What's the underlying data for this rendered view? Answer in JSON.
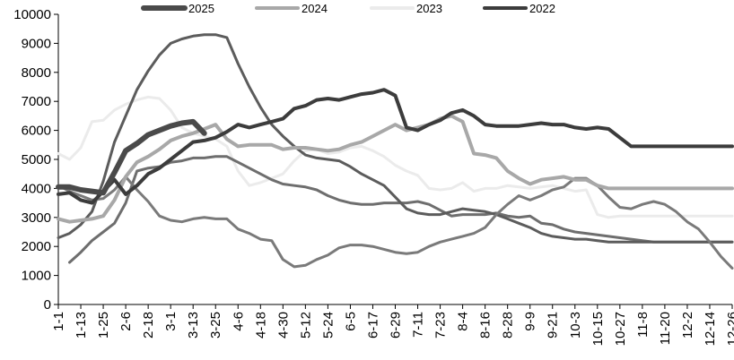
{
  "chart_data": {
    "type": "line",
    "title": "",
    "xlabel": "",
    "ylabel": "",
    "ylim": [
      0,
      10000
    ],
    "yticks": [
      0,
      1000,
      2000,
      3000,
      4000,
      5000,
      6000,
      7000,
      8000,
      9000,
      10000
    ],
    "legend_position": "top",
    "grid": false,
    "x": [
      "1-1",
      "1-7",
      "1-13",
      "1-19",
      "1-25",
      "1-31",
      "2-6",
      "2-12",
      "2-18",
      "2-24",
      "3-1",
      "3-7",
      "3-13",
      "3-19",
      "3-25",
      "3-31",
      "4-6",
      "4-12",
      "4-18",
      "4-24",
      "4-30",
      "5-6",
      "5-12",
      "5-18",
      "5-24",
      "5-30",
      "6-5",
      "6-11",
      "6-17",
      "6-23",
      "6-29",
      "7-5",
      "7-11",
      "7-17",
      "7-23",
      "7-29",
      "8-4",
      "8-10",
      "8-16",
      "8-22",
      "8-28",
      "9-3",
      "9-9",
      "9-15",
      "9-21",
      "9-27",
      "10-3",
      "10-9",
      "10-15",
      "10-21",
      "10-27",
      "11-2",
      "11-8",
      "11-14",
      "11-20",
      "11-26",
      "12-2",
      "12-8",
      "12-14",
      "12-20",
      "12-26"
    ],
    "x_tick_labels": [
      "1-1",
      "1-13",
      "1-25",
      "2-6",
      "2-18",
      "3-1",
      "3-13",
      "3-25",
      "4-6",
      "4-18",
      "4-30",
      "5-12",
      "5-24",
      "6-5",
      "6-17",
      "6-29",
      "7-11",
      "7-23",
      "8-4",
      "8-16",
      "8-28",
      "9-9",
      "9-21",
      "10-3",
      "10-15",
      "10-27",
      "11-8",
      "11-20",
      "12-2",
      "12-14",
      "12-26"
    ],
    "series": [
      {
        "name": "2025",
        "color": "#4a4a4a",
        "width": 6,
        "values": [
          4050,
          4050,
          3950,
          3900,
          3850,
          4550,
          5300,
          5550,
          5850,
          6000,
          6150,
          6250,
          6300,
          5900,
          null,
          null,
          null,
          null,
          null,
          null,
          null,
          null,
          null,
          null,
          null,
          null,
          null,
          null,
          null,
          null,
          null,
          null,
          null,
          null,
          null,
          null,
          null,
          null,
          null,
          null,
          null,
          null,
          null,
          null,
          null,
          null,
          null,
          null,
          null,
          null,
          null,
          null,
          null,
          null,
          null,
          null,
          null,
          null,
          null,
          null,
          null
        ]
      },
      {
        "name": "2024",
        "color": "#a8a8a8",
        "width": 4,
        "values": [
          2950,
          2850,
          2900,
          2950,
          3050,
          3600,
          4400,
          4900,
          5100,
          5350,
          5650,
          5800,
          5900,
          6050,
          6200,
          5700,
          5450,
          5500,
          5500,
          5500,
          5350,
          5400,
          5400,
          5350,
          5300,
          5350,
          5500,
          5600,
          5800,
          6000,
          6200,
          6000,
          6100,
          6200,
          6400,
          6500,
          6300,
          5200,
          5150,
          5050,
          4600,
          4350,
          4150,
          4300,
          4350,
          4400,
          4300,
          4300,
          4100,
          4000,
          4000,
          4000,
          4000,
          4000,
          4000,
          4000,
          4000,
          4000,
          4000,
          4000,
          4000
        ]
      },
      {
        "name": "2023",
        "color": "#ebebeb",
        "width": 3,
        "values": [
          5200,
          5000,
          5400,
          6300,
          6350,
          6700,
          6900,
          7050,
          7150,
          7100,
          6700,
          6100,
          5900,
          5800,
          5700,
          5450,
          4600,
          4100,
          4200,
          4350,
          4500,
          4950,
          5300,
          5350,
          5200,
          5250,
          5400,
          5450,
          5300,
          5100,
          4800,
          4600,
          4450,
          4000,
          3950,
          4000,
          4200,
          3900,
          4000,
          4000,
          4100,
          4050,
          4000,
          4050,
          4100,
          4000,
          3900,
          3950,
          3100,
          3000,
          3050,
          3050,
          3050,
          3050,
          3050,
          3050,
          3050,
          3050,
          3050,
          3050,
          3050
        ]
      },
      {
        "name": "2022",
        "color": "#3c3c3c",
        "width": 4,
        "values": [
          3800,
          3850,
          3600,
          3500,
          3900,
          4300,
          3800,
          4100,
          4500,
          4700,
          5000,
          5300,
          5600,
          5650,
          5750,
          5950,
          6200,
          6100,
          6200,
          6300,
          6400,
          6750,
          6850,
          7050,
          7100,
          7050,
          7150,
          7250,
          7300,
          7400,
          7200,
          6100,
          6000,
          6200,
          6350,
          6600,
          6700,
          6500,
          6200,
          6150,
          6150,
          6150,
          6200,
          6250,
          6200,
          6200,
          6100,
          6050,
          6100,
          6050,
          5750,
          5450,
          5450,
          5450,
          5450,
          5450,
          5450,
          5450,
          5450,
          5450,
          5450
        ]
      },
      {
        "name": "",
        "color": "#6e6e6e",
        "width": 3,
        "values": [
          null,
          1450,
          1800,
          2200,
          2500,
          2800,
          3500,
          4600,
          4700,
          4750,
          4900,
          4950,
          5050,
          5050,
          5100,
          5100,
          4900,
          4700,
          4500,
          4300,
          4150,
          4100,
          4050,
          3950,
          3750,
          3600,
          3500,
          3450,
          3450,
          3500,
          3500,
          3500,
          3550,
          3450,
          3250,
          3050,
          3100,
          3100,
          3100,
          3150,
          3050,
          3000,
          3050,
          2800,
          2750,
          2600,
          2500,
          2450,
          2400,
          2350,
          2300,
          2250,
          2200,
          2150,
          2150,
          2150,
          2150,
          2150,
          2150,
          2150,
          2150
        ]
      },
      {
        "name": "",
        "color": "#5c5c5c",
        "width": 3,
        "values": [
          2300,
          2450,
          2750,
          3200,
          4250,
          5600,
          6500,
          7400,
          8050,
          8600,
          9000,
          9150,
          9250,
          9300,
          9300,
          9200,
          8300,
          7500,
          6800,
          6200,
          5800,
          5450,
          5150,
          5050,
          5000,
          4950,
          4750,
          4500,
          4300,
          4100,
          3700,
          3300,
          3150,
          3100,
          3100,
          3200,
          3300,
          3250,
          3200,
          3100,
          2950,
          2800,
          2650,
          2450,
          2350,
          2300,
          2250,
          2250,
          2200,
          2150,
          2150,
          2150,
          2150,
          2150,
          2150,
          2150,
          2150,
          2150,
          2150,
          2150,
          2150
        ]
      },
      {
        "name": "",
        "color": "#7a7a7a",
        "width": 3,
        "values": [
          4100,
          3900,
          3750,
          3600,
          3650,
          3950,
          4400,
          3950,
          3550,
          3050,
          2900,
          2850,
          2950,
          3000,
          2950,
          2950,
          2600,
          2450,
          2250,
          2200,
          1550,
          1300,
          1350,
          1550,
          1700,
          1950,
          2050,
          2050,
          2000,
          1900,
          1800,
          1750,
          1800,
          2000,
          2150,
          2250,
          2350,
          2450,
          2650,
          3100,
          3450,
          3750,
          3600,
          3750,
          3950,
          4050,
          4350,
          4350,
          4100,
          3700,
          3350,
          3300,
          3450,
          3550,
          3450,
          3200,
          2850,
          2600,
          2150,
          1650,
          1250
        ]
      }
    ]
  }
}
